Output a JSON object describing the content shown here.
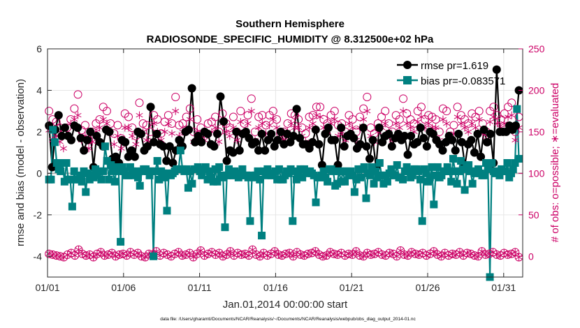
{
  "chart_data": {
    "type": "line",
    "title": "Southern Hemisphere",
    "subtitle": "RADIOSONDE_SPECIFIC_HUMIDITY @ 8.312500e+02 hPa",
    "xlabel": "Jan.01,2014 00:00:00 start",
    "ylabel": "rmse and bias (model - observation)",
    "y2label": "# of obs: o=possible; ∗=evaluated",
    "footnote": "data file: /Users/gharamti/Documents/NCAR/Reanalysis/~/Documents/NCAR/Reanalysis/webpub/obs_diag_output_2014-01.nc",
    "xlim": [
      0,
      31.25
    ],
    "ylim": [
      -5,
      6
    ],
    "y2lim": [
      -25,
      250
    ],
    "xticks": [
      0,
      5,
      10,
      15,
      20,
      25,
      30
    ],
    "xtick_labels": [
      "01/01",
      "01/06",
      "01/11",
      "01/16",
      "01/21",
      "01/26",
      "01/31"
    ],
    "yticks": [
      -4,
      -2,
      0,
      2,
      4,
      6
    ],
    "ytick_labels": [
      "-4",
      "-2",
      "0",
      "2",
      "4",
      "6"
    ],
    "y2ticks": [
      0,
      50,
      100,
      150,
      200,
      250
    ],
    "y2tick_labels": [
      "0",
      "50",
      "100",
      "150",
      "200",
      "250"
    ],
    "grid": true,
    "legend_position": "top-right",
    "series": [
      {
        "name": "rmse",
        "legend": "rmse pr=1.619",
        "color": "#000000",
        "marker": "circle",
        "axis": "left",
        "values": [
          2.3,
          0.3,
          2.1,
          2.8,
          1.8,
          2.2,
          1.8,
          1.6,
          2.3,
          2.2,
          1.7,
          1.1,
          1.6,
          2.0,
          0.3,
          1.8,
          1.5,
          1.3,
          2.1,
          2.0,
          0.7,
          0.8,
          0.5,
          1.6,
          1.5,
          0.8,
          1.1,
          0.8,
          2.0,
          1.9,
          1.1,
          1.3,
          3.2,
          1.5,
          1.9,
          1.4,
          1.3,
          0.6,
          1.3,
          0.5,
          1.1,
          1.6,
          1.3,
          2.0,
          2.1,
          4.1,
          1.5,
          1.8,
          1.5,
          2.0,
          1.9,
          1.4,
          1.3,
          1.9,
          3.7,
          2.5,
          0.6,
          1.1,
          1.0,
          2.0,
          1.1,
          1.9,
          2.0,
          1.7,
          1.4,
          1.5,
          1.1,
          1.9,
          1.1,
          1.6,
          1.9,
          1.3,
          1.6,
          2.0,
          1.4,
          1.9,
          1.5,
          1.8,
          3.1,
          1.7,
          1.4,
          1.4,
          1.2,
          1.5,
          2.1,
          1.4,
          0.4,
          1.9,
          2.2,
          1.6,
          1.6,
          0.4,
          2.2,
          1.3,
          1.8,
          1.9,
          1.7,
          1.2,
          1.4,
          2.2,
          1.3,
          0.7,
          1.6,
          0.3,
          2.2,
          1.5,
          1.8,
          1.9,
          1.3,
          1.7,
          1.9,
          1.6,
          1.8,
          0.9,
          1.8,
          1.4,
          1.5,
          2.2,
          1.7,
          1.3,
          2.0,
          1.9,
          1.6,
          1.4,
          1.1,
          1.5,
          1.8,
          1.6,
          1.1,
          1.9,
          1.5,
          0.4,
          1.4,
          1.6,
          1.0,
          1.9,
          0.8,
          2.1,
          1.5,
          1.9,
          0.5,
          5.0,
          2.0,
          2.0,
          2.0,
          2.3,
          2.1,
          2.3,
          4.0
        ]
      },
      {
        "name": "bias",
        "legend": "bias pr=-0.083571",
        "color": "#008080",
        "marker": "square",
        "axis": "left",
        "values": [
          -0.3,
          -0.3,
          2.1,
          1.5,
          0.5,
          0.2,
          0.1,
          0.5,
          -0.4,
          0.5,
          -0.3,
          -0.3,
          -1.6,
          0.1,
          -0.3,
          -0.3,
          -0.1,
          -0.4,
          0.1,
          -0.9,
          0.0,
          -0.3,
          -0.1,
          -0.2,
          0.2,
          -0.1,
          0.1,
          -0.3,
          0.1,
          1.3,
          0.6,
          -0.3,
          0.4,
          0.1,
          -0.4,
          0.3,
          0.1,
          -3.3,
          0.3,
          0.1,
          -0.1,
          -0.1,
          0.3,
          0.1,
          -0.1,
          0.1,
          -0.2,
          -0.6,
          0.1,
          0.2,
          0.2,
          0.1,
          -0.1,
          0.1,
          -4.0,
          0.1,
          0.6,
          -0.3,
          0.1,
          0.0,
          -0.2,
          -1.8,
          0.0,
          -0.1,
          0.0,
          0.1,
          0.2,
          0.2,
          1.1,
          0.2,
          0.1,
          0.2,
          -0.7,
          0.1,
          -0.5,
          0.2,
          0.2,
          0.3,
          0.1,
          -0.1,
          0.2,
          0.3,
          -0.3,
          0.1,
          -0.2,
          -0.4,
          0.2,
          -0.4,
          0.3,
          -0.1,
          -0.2,
          -2.6,
          -0.1,
          0.2,
          -0.1,
          -0.1,
          0.1,
          0.0,
          -0.2,
          -0.1,
          0.2,
          -0.1,
          -0.1,
          -0.2,
          -2.3,
          -0.1,
          -0.2,
          -0.1,
          0.1,
          -0.3,
          -3.0,
          0.1,
          -0.1,
          0.2,
          0.0,
          -0.1,
          -0.1,
          0.1,
          -0.3,
          0.2,
          -0.3,
          -0.3,
          -0.1,
          0.1,
          0.0,
          0.2,
          -2.3,
          0.1,
          -0.3,
          0.0,
          0.2,
          -0.2,
          0.2,
          0.1,
          0.0,
          0.1,
          0.0,
          -0.1,
          -1.4,
          -0.2,
          -0.2,
          -0.1,
          0.1,
          -0.2,
          -0.4,
          0.2,
          0.2,
          0.1,
          -0.6,
          -0.5,
          0.1,
          -0.4,
          0.1,
          -0.4,
          0.1,
          -0.1,
          0.1,
          -0.1,
          -0.9,
          -0.3,
          0.2,
          -0.2,
          0.2,
          0.3,
          -1.2,
          0.0,
          -0.1,
          0.3,
          -0.5,
          0.1,
          -0.2,
          0.5,
          -0.1,
          -0.5,
          -0.1,
          -0.4,
          0.0,
          0.2,
          -0.1,
          -0.1,
          0.4,
          -0.2,
          -0.2,
          -0.3,
          0.1,
          0.3,
          0.1,
          -0.2,
          -0.1,
          0.2,
          0.2,
          0.1,
          -0.3,
          -2.3,
          0.2,
          0.0,
          -0.4,
          -0.2,
          0.3,
          -1.5,
          -0.1,
          0.3,
          -0.2,
          -0.1,
          0.1,
          0.1,
          0.3,
          0.1,
          -0.4,
          0.7,
          0.1,
          -0.5,
          0.1,
          0.6,
          0.2,
          -0.8,
          0.3,
          0.4,
          0.1,
          -0.5,
          0.0,
          0.1,
          0.2,
          0.0,
          -0.1,
          -0.1,
          0.5,
          0.2,
          -5.0,
          0.5,
          0.1,
          0.0,
          0.1,
          -0.1,
          0.2,
          0.1,
          0.1,
          0.5,
          -0.2,
          0.0,
          0.2,
          0.5,
          3.1,
          0.7
        ]
      },
      {
        "name": "possible",
        "color": "#cc0066",
        "marker": "open-circle",
        "axis": "right",
        "values": [
          175,
          165,
          162,
          155,
          148,
          155,
          165,
          178,
          195,
          152,
          158,
          140,
          150,
          160,
          165,
          180,
          175,
          160,
          148,
          158,
          142,
          172,
          168,
          155,
          145,
          185,
          160,
          158,
          150,
          170,
          165,
          148,
          162,
          170,
          160,
          192,
          158,
          160,
          168,
          178,
          150,
          165,
          155,
          150,
          160,
          162,
          168,
          150,
          172,
          160,
          155,
          168,
          150,
          175,
          160,
          170,
          190,
          150,
          168,
          170,
          158,
          170,
          175,
          165,
          148,
          150,
          160,
          172,
          170,
          165,
          155,
          148,
          168,
          170,
          180,
          180,
          165,
          160,
          170,
          175,
          158,
          160,
          150,
          170,
          165,
          150,
          168,
          178,
          192,
          155,
          148,
          160,
          168,
          175,
          160,
          150,
          170,
          165,
          190,
          172,
          165,
          160,
          175,
          180,
          165,
          170,
          168,
          165,
          150,
          178,
          175,
          150,
          158,
          180,
          170,
          165,
          160,
          172,
          168,
          175,
          160,
          150,
          175,
          180,
          170,
          165,
          172,
          180,
          185,
          150,
          168
        ]
      },
      {
        "name": "evaluated",
        "color": "#cc0066",
        "marker": "asterisk",
        "axis": "right",
        "values": [
          152,
          140,
          145,
          138,
          130,
          145,
          160,
          165,
          170,
          140,
          145,
          130,
          138,
          150,
          155,
          165,
          160,
          148,
          135,
          145,
          130,
          155,
          155,
          145,
          135,
          170,
          150,
          140,
          138,
          160,
          150,
          140,
          150,
          160,
          148,
          175,
          145,
          150,
          155,
          165,
          138,
          150,
          145,
          140,
          148,
          150,
          155,
          138,
          160,
          150,
          145,
          155,
          140,
          162,
          148,
          160,
          175,
          140,
          155,
          160,
          148,
          158,
          165,
          155,
          140,
          140,
          150,
          160,
          155,
          155,
          145,
          138,
          155,
          160,
          170,
          168,
          155,
          150,
          160,
          165,
          145,
          150,
          140,
          160,
          155,
          140,
          155,
          165,
          175,
          145,
          138,
          150,
          155,
          160,
          150,
          140,
          160,
          155,
          175,
          160,
          155,
          150,
          162,
          168,
          155,
          160,
          155,
          155,
          140,
          165,
          160,
          140,
          148,
          168,
          160,
          155,
          150,
          160,
          155,
          165,
          148,
          140,
          162,
          168,
          160,
          155,
          160,
          168,
          170,
          140,
          155
        ]
      },
      {
        "name": "possible-low",
        "color": "#cc0066",
        "marker": "open-circle",
        "axis": "right",
        "values": [
          3,
          2,
          1,
          0,
          -1,
          2,
          4,
          1,
          8,
          3,
          1,
          2,
          -1,
          3,
          5,
          1,
          2,
          4,
          0,
          2,
          3,
          1,
          5,
          2,
          4,
          0,
          -1,
          3,
          2,
          6,
          1,
          4,
          2,
          0,
          3,
          5,
          1,
          2,
          4,
          -1,
          3,
          7,
          1,
          3,
          5,
          2,
          4,
          0,
          2,
          6,
          1,
          4,
          2,
          3,
          1,
          8,
          2,
          0,
          4,
          1,
          3,
          6,
          2,
          1,
          3,
          4,
          0,
          5,
          2,
          1,
          3,
          4,
          6,
          2,
          0,
          1,
          5,
          3,
          2,
          4,
          1,
          3,
          2,
          6,
          1,
          0,
          4,
          2,
          3,
          5,
          2,
          1,
          4,
          3,
          0,
          7,
          2,
          1,
          5,
          3,
          2,
          4,
          1,
          3,
          6,
          2,
          0,
          4,
          1,
          3,
          2,
          5,
          1,
          4,
          3,
          1,
          0,
          6,
          2,
          3,
          5,
          2,
          1,
          4,
          2,
          3,
          5,
          -1
        ]
      },
      {
        "name": "evaluated-low",
        "color": "#cc0066",
        "marker": "asterisk",
        "axis": "right",
        "values": [
          3,
          2,
          1,
          0,
          -1,
          2,
          4,
          1,
          8,
          3,
          1,
          2,
          -1,
          3,
          5,
          1,
          2,
          4,
          0,
          2,
          3,
          1,
          5,
          2,
          4,
          0,
          -1,
          3,
          2,
          6,
          1,
          4,
          2,
          0,
          3,
          5,
          1,
          2,
          4,
          -1,
          3,
          7,
          1,
          3,
          5,
          2,
          4,
          0,
          2,
          6,
          1,
          4,
          2,
          3,
          1,
          8,
          2,
          0,
          4,
          1,
          3,
          6,
          2,
          1,
          3,
          4,
          0,
          5,
          2,
          1,
          3,
          4,
          6,
          2,
          0,
          1,
          5,
          3,
          2,
          4,
          1,
          3,
          2,
          6,
          1,
          0,
          4,
          2,
          3,
          5,
          2,
          1,
          4,
          3,
          0,
          7,
          2,
          1,
          5,
          3,
          2,
          4,
          1,
          3,
          6,
          2,
          0,
          4,
          1,
          3,
          2,
          5,
          1,
          4,
          3,
          1,
          0,
          6,
          2,
          3,
          5,
          2,
          1,
          4,
          2,
          3,
          5,
          -1
        ]
      }
    ]
  },
  "colors": {
    "rmse": "#000000",
    "bias": "#008080",
    "obs": "#cc0066",
    "zero_line": "#b0b0b0",
    "grid": "#e6e6e6"
  }
}
